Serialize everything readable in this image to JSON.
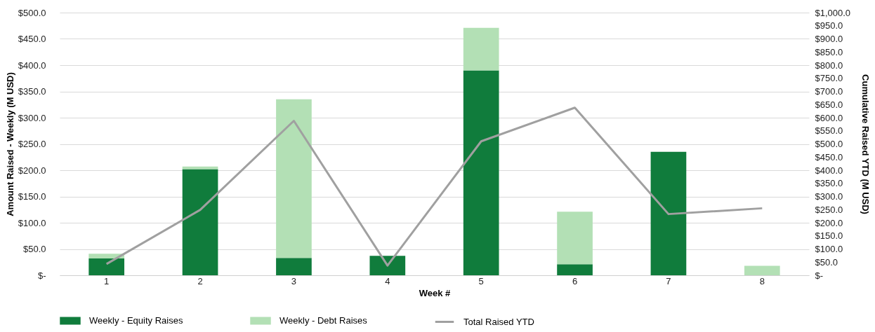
{
  "chart_data": {
    "type": "bar",
    "stacked": true,
    "xlabel": "Week #",
    "ylabel": "Amount Raised - Weekly (M USD)",
    "y2label": "Cumulative Raised YTD (M USD)",
    "categories": [
      "1",
      "2",
      "3",
      "4",
      "5",
      "6",
      "7",
      "8"
    ],
    "series": [
      {
        "name": "Weekly - Equity Raises",
        "color": "#107c3c",
        "values": [
          32,
          202,
          33,
          37,
          390,
          21,
          235,
          0
        ]
      },
      {
        "name": "Weekly - Debt Raises",
        "color": "#b3e0b5",
        "values": [
          9,
          5,
          302,
          0,
          81,
          100,
          0,
          18
        ]
      },
      {
        "name": "Total Raised YTD",
        "type": "line",
        "axis": "y2",
        "color": "#a0a0a0",
        "values": [
          43,
          249,
          588,
          37,
          510,
          638,
          233,
          255
        ]
      }
    ],
    "ylim": [
      0,
      500
    ],
    "yticks": [
      {
        "value": 0,
        "label": "$-"
      },
      {
        "value": 50,
        "label": "$50.0"
      },
      {
        "value": 100,
        "label": "$100.0"
      },
      {
        "value": 150,
        "label": "$150.0"
      },
      {
        "value": 200,
        "label": "$200.0"
      },
      {
        "value": 250,
        "label": "$250.0"
      },
      {
        "value": 300,
        "label": "$300.0"
      },
      {
        "value": 350,
        "label": "$350.0"
      },
      {
        "value": 400,
        "label": "$400.0"
      },
      {
        "value": 450,
        "label": "$450.0"
      },
      {
        "value": 500,
        "label": "$500.0"
      }
    ],
    "y2lim": [
      0,
      1000
    ],
    "y2ticks": [
      {
        "value": 0,
        "label": "$-"
      },
      {
        "value": 50,
        "label": "$50.0"
      },
      {
        "value": 100,
        "label": "$100.0"
      },
      {
        "value": 150,
        "label": "$150.0"
      },
      {
        "value": 200,
        "label": "$200.0"
      },
      {
        "value": 250,
        "label": "$250.0"
      },
      {
        "value": 300,
        "label": "$300.0"
      },
      {
        "value": 350,
        "label": "$350.0"
      },
      {
        "value": 400,
        "label": "$400.0"
      },
      {
        "value": 450,
        "label": "$450.0"
      },
      {
        "value": 500,
        "label": "$500.0"
      },
      {
        "value": 550,
        "label": "$550.0"
      },
      {
        "value": 600,
        "label": "$600.0"
      },
      {
        "value": 650,
        "label": "$650.0"
      },
      {
        "value": 700,
        "label": "$700.0"
      },
      {
        "value": 750,
        "label": "$750.0"
      },
      {
        "value": 800,
        "label": "$800.0"
      },
      {
        "value": 850,
        "label": "$850.0"
      },
      {
        "value": 900,
        "label": "$900.0"
      },
      {
        "value": 950,
        "label": "$950.0"
      },
      {
        "value": 1000,
        "label": "$1,000.0"
      }
    ],
    "grid": "y",
    "legend": "bottom",
    "marker": "none",
    "line_style": "solid"
  }
}
